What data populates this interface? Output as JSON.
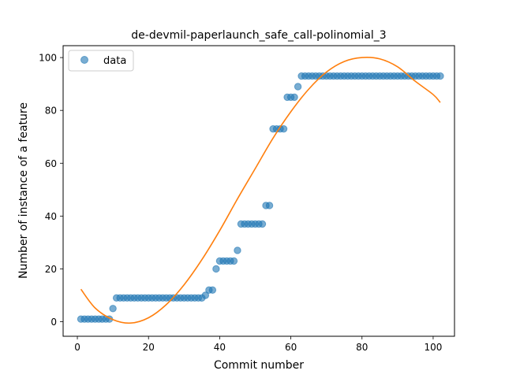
{
  "chart_data": {
    "type": "scatter",
    "title": "de-devmil-paperlaunch_safe_call-polinomial_3",
    "xlabel": "Commit number",
    "ylabel": "Number of instance of a feature",
    "xlim": [
      -4,
      106
    ],
    "ylim": [
      -5.5,
      104.5
    ],
    "xticks": [
      0,
      20,
      40,
      60,
      80,
      100
    ],
    "yticks": [
      0,
      20,
      40,
      60,
      80,
      100
    ],
    "grid": false,
    "legend": {
      "position": "top-left",
      "entries": [
        "data"
      ]
    },
    "colors": {
      "data": "#1f77b4",
      "fit": "#ff7f0e"
    },
    "series": [
      {
        "name": "data",
        "kind": "scatter",
        "x": [
          1,
          2,
          3,
          4,
          5,
          6,
          7,
          8,
          9,
          10,
          11,
          12,
          13,
          14,
          15,
          16,
          17,
          18,
          19,
          20,
          21,
          22,
          23,
          24,
          25,
          26,
          27,
          28,
          29,
          30,
          31,
          32,
          33,
          34,
          35,
          36,
          37,
          38,
          39,
          40,
          41,
          42,
          43,
          44,
          45,
          46,
          47,
          48,
          49,
          50,
          51,
          52,
          53,
          54,
          55,
          56,
          57,
          58,
          59,
          60,
          61,
          62,
          63,
          64,
          65,
          66,
          67,
          68,
          69,
          70,
          71,
          72,
          73,
          74,
          75,
          76,
          77,
          78,
          79,
          80,
          81,
          82,
          83,
          84,
          85,
          86,
          87,
          88,
          89,
          90,
          91,
          92,
          93,
          94,
          95,
          96,
          97,
          98,
          99,
          100,
          101,
          102
        ],
        "y": [
          1,
          1,
          1,
          1,
          1,
          1,
          1,
          1,
          1,
          5,
          9,
          9,
          9,
          9,
          9,
          9,
          9,
          9,
          9,
          9,
          9,
          9,
          9,
          9,
          9,
          9,
          9,
          9,
          9,
          9,
          9,
          9,
          9,
          9,
          9,
          10,
          12,
          12,
          20,
          23,
          23,
          23,
          23,
          23,
          27,
          37,
          37,
          37,
          37,
          37,
          37,
          37,
          44,
          44,
          73,
          73,
          73,
          73,
          85,
          85,
          85,
          89,
          93,
          93,
          93,
          93,
          93,
          93,
          93,
          93,
          93,
          93,
          93,
          93,
          93,
          93,
          93,
          93,
          93,
          93,
          93,
          93,
          93,
          93,
          93,
          93,
          93,
          93,
          93,
          93,
          93,
          93,
          93,
          93,
          93,
          93,
          93,
          93,
          93,
          93,
          93,
          93
        ]
      },
      {
        "kind": "line",
        "x": [
          1,
          5,
          10,
          15,
          20,
          25,
          30,
          35,
          40,
          45,
          50,
          55,
          60,
          65,
          70,
          75,
          80,
          85,
          90,
          95,
          100,
          102
        ],
        "y": [
          12.3,
          5.2,
          0.8,
          -0.5,
          1.5,
          6.5,
          14,
          23.5,
          34.5,
          46.5,
          58,
          69.5,
          79.5,
          88,
          94.5,
          98.5,
          100,
          99.5,
          96.5,
          91,
          86,
          83
        ]
      }
    ]
  }
}
